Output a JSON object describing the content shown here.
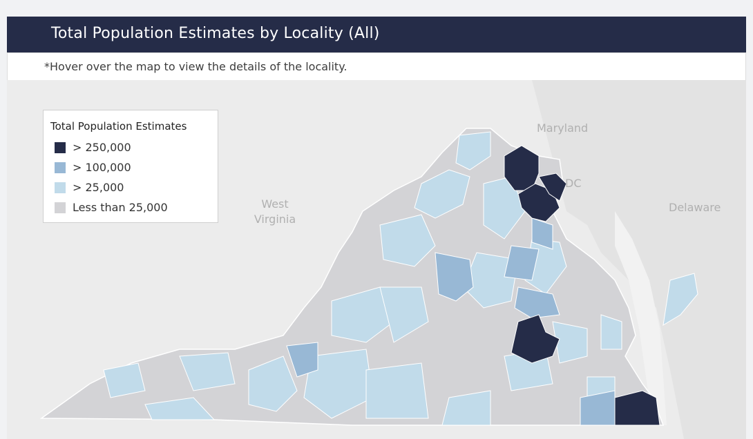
{
  "header": {
    "title": "Total Population Estimates by Locality (All)",
    "subtitle": "*Hover over the map to view the details of the locality."
  },
  "legend": {
    "title": "Total Population Estimates",
    "items": [
      {
        "label": "> 250,000",
        "color": "#252c48"
      },
      {
        "label": "> 100,000",
        "color": "#98b8d5"
      },
      {
        "label": "> 25,000",
        "color": "#c1dbea"
      },
      {
        "label": "Less than 25,000",
        "color": "#d3d3d6"
      }
    ]
  },
  "map": {
    "labels": {
      "maryland": "Maryland",
      "dc": "DC",
      "delaware": "Delaware",
      "west_virginia": "West Virginia"
    }
  }
}
